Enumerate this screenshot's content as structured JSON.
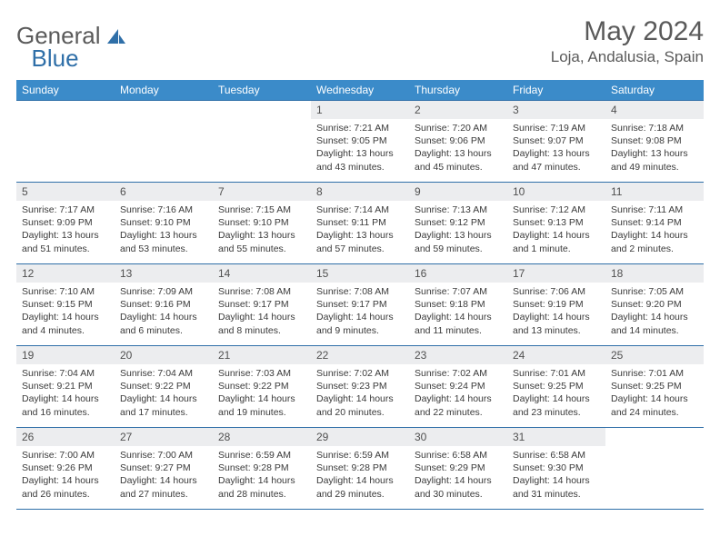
{
  "logo": {
    "part1": "General",
    "part2": "Blue"
  },
  "title": "May 2024",
  "location": "Loja, Andalusia, Spain",
  "colors": {
    "header_bg": "#3b8bc9",
    "border": "#2f6fa8",
    "daynum_bg": "#ecedef",
    "text": "#3a3a3a",
    "title_text": "#5a5a5a"
  },
  "dayNames": [
    "Sunday",
    "Monday",
    "Tuesday",
    "Wednesday",
    "Thursday",
    "Friday",
    "Saturday"
  ],
  "weeks": [
    [
      null,
      null,
      null,
      {
        "d": "1",
        "sr": "Sunrise: 7:21 AM",
        "ss": "Sunset: 9:05 PM",
        "dl1": "Daylight: 13 hours",
        "dl2": "and 43 minutes."
      },
      {
        "d": "2",
        "sr": "Sunrise: 7:20 AM",
        "ss": "Sunset: 9:06 PM",
        "dl1": "Daylight: 13 hours",
        "dl2": "and 45 minutes."
      },
      {
        "d": "3",
        "sr": "Sunrise: 7:19 AM",
        "ss": "Sunset: 9:07 PM",
        "dl1": "Daylight: 13 hours",
        "dl2": "and 47 minutes."
      },
      {
        "d": "4",
        "sr": "Sunrise: 7:18 AM",
        "ss": "Sunset: 9:08 PM",
        "dl1": "Daylight: 13 hours",
        "dl2": "and 49 minutes."
      }
    ],
    [
      {
        "d": "5",
        "sr": "Sunrise: 7:17 AM",
        "ss": "Sunset: 9:09 PM",
        "dl1": "Daylight: 13 hours",
        "dl2": "and 51 minutes."
      },
      {
        "d": "6",
        "sr": "Sunrise: 7:16 AM",
        "ss": "Sunset: 9:10 PM",
        "dl1": "Daylight: 13 hours",
        "dl2": "and 53 minutes."
      },
      {
        "d": "7",
        "sr": "Sunrise: 7:15 AM",
        "ss": "Sunset: 9:10 PM",
        "dl1": "Daylight: 13 hours",
        "dl2": "and 55 minutes."
      },
      {
        "d": "8",
        "sr": "Sunrise: 7:14 AM",
        "ss": "Sunset: 9:11 PM",
        "dl1": "Daylight: 13 hours",
        "dl2": "and 57 minutes."
      },
      {
        "d": "9",
        "sr": "Sunrise: 7:13 AM",
        "ss": "Sunset: 9:12 PM",
        "dl1": "Daylight: 13 hours",
        "dl2": "and 59 minutes."
      },
      {
        "d": "10",
        "sr": "Sunrise: 7:12 AM",
        "ss": "Sunset: 9:13 PM",
        "dl1": "Daylight: 14 hours",
        "dl2": "and 1 minute."
      },
      {
        "d": "11",
        "sr": "Sunrise: 7:11 AM",
        "ss": "Sunset: 9:14 PM",
        "dl1": "Daylight: 14 hours",
        "dl2": "and 2 minutes."
      }
    ],
    [
      {
        "d": "12",
        "sr": "Sunrise: 7:10 AM",
        "ss": "Sunset: 9:15 PM",
        "dl1": "Daylight: 14 hours",
        "dl2": "and 4 minutes."
      },
      {
        "d": "13",
        "sr": "Sunrise: 7:09 AM",
        "ss": "Sunset: 9:16 PM",
        "dl1": "Daylight: 14 hours",
        "dl2": "and 6 minutes."
      },
      {
        "d": "14",
        "sr": "Sunrise: 7:08 AM",
        "ss": "Sunset: 9:17 PM",
        "dl1": "Daylight: 14 hours",
        "dl2": "and 8 minutes."
      },
      {
        "d": "15",
        "sr": "Sunrise: 7:08 AM",
        "ss": "Sunset: 9:17 PM",
        "dl1": "Daylight: 14 hours",
        "dl2": "and 9 minutes."
      },
      {
        "d": "16",
        "sr": "Sunrise: 7:07 AM",
        "ss": "Sunset: 9:18 PM",
        "dl1": "Daylight: 14 hours",
        "dl2": "and 11 minutes."
      },
      {
        "d": "17",
        "sr": "Sunrise: 7:06 AM",
        "ss": "Sunset: 9:19 PM",
        "dl1": "Daylight: 14 hours",
        "dl2": "and 13 minutes."
      },
      {
        "d": "18",
        "sr": "Sunrise: 7:05 AM",
        "ss": "Sunset: 9:20 PM",
        "dl1": "Daylight: 14 hours",
        "dl2": "and 14 minutes."
      }
    ],
    [
      {
        "d": "19",
        "sr": "Sunrise: 7:04 AM",
        "ss": "Sunset: 9:21 PM",
        "dl1": "Daylight: 14 hours",
        "dl2": "and 16 minutes."
      },
      {
        "d": "20",
        "sr": "Sunrise: 7:04 AM",
        "ss": "Sunset: 9:22 PM",
        "dl1": "Daylight: 14 hours",
        "dl2": "and 17 minutes."
      },
      {
        "d": "21",
        "sr": "Sunrise: 7:03 AM",
        "ss": "Sunset: 9:22 PM",
        "dl1": "Daylight: 14 hours",
        "dl2": "and 19 minutes."
      },
      {
        "d": "22",
        "sr": "Sunrise: 7:02 AM",
        "ss": "Sunset: 9:23 PM",
        "dl1": "Daylight: 14 hours",
        "dl2": "and 20 minutes."
      },
      {
        "d": "23",
        "sr": "Sunrise: 7:02 AM",
        "ss": "Sunset: 9:24 PM",
        "dl1": "Daylight: 14 hours",
        "dl2": "and 22 minutes."
      },
      {
        "d": "24",
        "sr": "Sunrise: 7:01 AM",
        "ss": "Sunset: 9:25 PM",
        "dl1": "Daylight: 14 hours",
        "dl2": "and 23 minutes."
      },
      {
        "d": "25",
        "sr": "Sunrise: 7:01 AM",
        "ss": "Sunset: 9:25 PM",
        "dl1": "Daylight: 14 hours",
        "dl2": "and 24 minutes."
      }
    ],
    [
      {
        "d": "26",
        "sr": "Sunrise: 7:00 AM",
        "ss": "Sunset: 9:26 PM",
        "dl1": "Daylight: 14 hours",
        "dl2": "and 26 minutes."
      },
      {
        "d": "27",
        "sr": "Sunrise: 7:00 AM",
        "ss": "Sunset: 9:27 PM",
        "dl1": "Daylight: 14 hours",
        "dl2": "and 27 minutes."
      },
      {
        "d": "28",
        "sr": "Sunrise: 6:59 AM",
        "ss": "Sunset: 9:28 PM",
        "dl1": "Daylight: 14 hours",
        "dl2": "and 28 minutes."
      },
      {
        "d": "29",
        "sr": "Sunrise: 6:59 AM",
        "ss": "Sunset: 9:28 PM",
        "dl1": "Daylight: 14 hours",
        "dl2": "and 29 minutes."
      },
      {
        "d": "30",
        "sr": "Sunrise: 6:58 AM",
        "ss": "Sunset: 9:29 PM",
        "dl1": "Daylight: 14 hours",
        "dl2": "and 30 minutes."
      },
      {
        "d": "31",
        "sr": "Sunrise: 6:58 AM",
        "ss": "Sunset: 9:30 PM",
        "dl1": "Daylight: 14 hours",
        "dl2": "and 31 minutes."
      },
      null
    ]
  ]
}
